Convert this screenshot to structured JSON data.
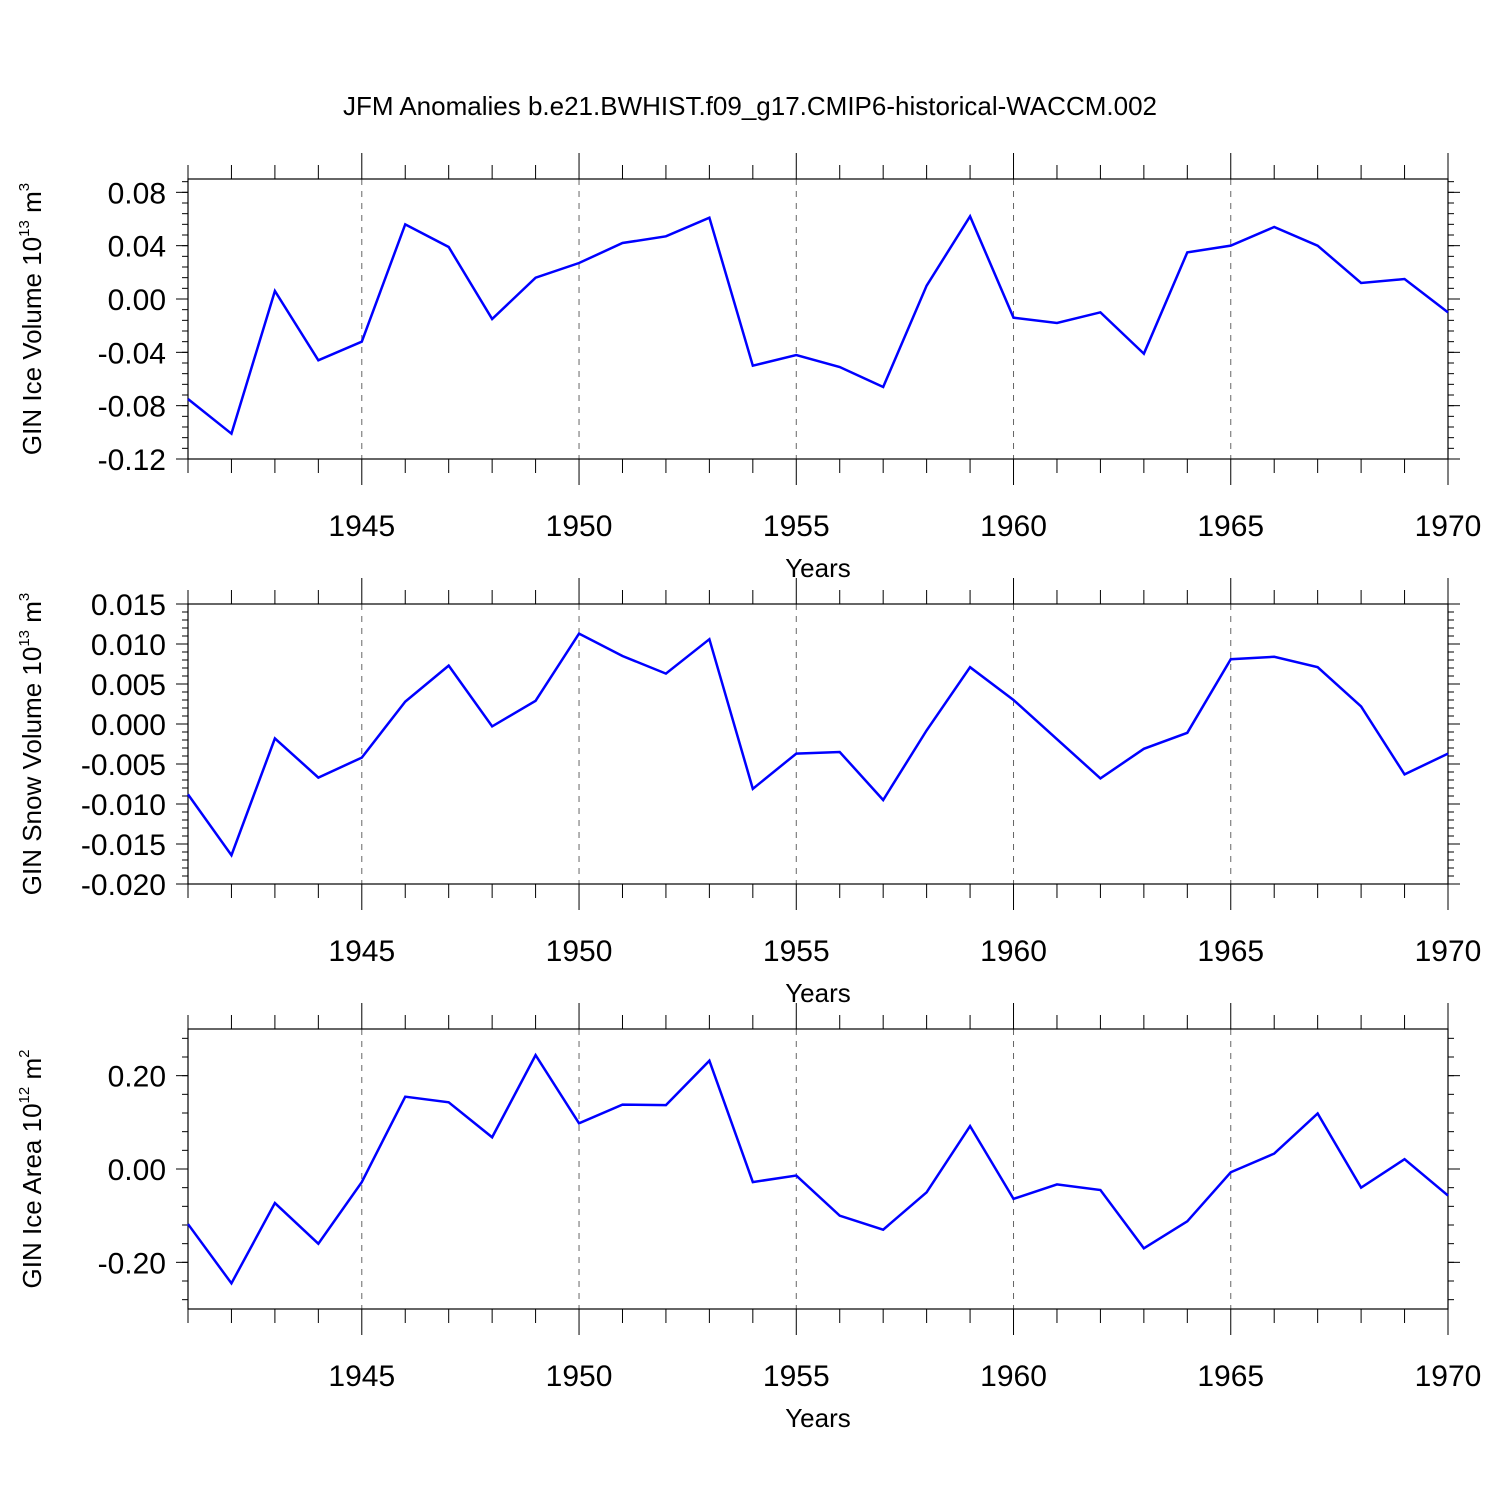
{
  "chart_data": [
    {
      "type": "line",
      "title": "JFM Anomalies b.e21.BWHIST.f09_g17.CMIP6-historical-WACCM.002",
      "xlabel": "Years",
      "ylabel_main": "GIN Ice Volume 10",
      "ylabel_exp": "13",
      "ylabel_unit": " m",
      "ylabel_unit_exp": "3",
      "xlim": [
        1941,
        1970
      ],
      "ylim": [
        -0.12,
        0.09
      ],
      "x_ticks": [
        1945,
        1950,
        1955,
        1960,
        1965,
        1970
      ],
      "x_tick_labels": [
        "1945",
        "1950",
        "1955",
        "1960",
        "1965",
        "1970"
      ],
      "y_ticks": [
        -0.12,
        -0.08,
        -0.04,
        0.0,
        0.04,
        0.08
      ],
      "y_tick_labels": [
        "-0.12",
        "-0.08",
        "-0.04",
        "0.00",
        "0.04",
        "0.08"
      ],
      "grid": "vertical dashed at labeled x ticks",
      "line_color": "#0000ff",
      "x": [
        1941,
        1942,
        1943,
        1944,
        1945,
        1946,
        1947,
        1948,
        1949,
        1950,
        1951,
        1952,
        1953,
        1954,
        1955,
        1956,
        1957,
        1958,
        1959,
        1960,
        1961,
        1962,
        1963,
        1964,
        1965,
        1966,
        1967,
        1968,
        1969,
        1970
      ],
      "values": [
        -0.075,
        -0.101,
        0.006,
        -0.046,
        -0.032,
        0.056,
        0.039,
        -0.015,
        0.016,
        0.027,
        0.042,
        0.047,
        0.061,
        -0.05,
        -0.042,
        -0.051,
        -0.066,
        0.01,
        0.062,
        -0.014,
        -0.018,
        -0.01,
        -0.041,
        0.035,
        0.04,
        0.054,
        0.04,
        0.012,
        0.015,
        -0.01
      ]
    },
    {
      "type": "line",
      "xlabel": "Years",
      "ylabel_main": "GIN Snow Volume 10",
      "ylabel_exp": "13",
      "ylabel_unit": " m",
      "ylabel_unit_exp": "3",
      "xlim": [
        1941,
        1970
      ],
      "ylim": [
        -0.02,
        0.015
      ],
      "x_ticks": [
        1945,
        1950,
        1955,
        1960,
        1965,
        1970
      ],
      "x_tick_labels": [
        "1945",
        "1950",
        "1955",
        "1960",
        "1965",
        "1970"
      ],
      "y_ticks": [
        -0.02,
        -0.015,
        -0.01,
        -0.005,
        0.0,
        0.005,
        0.01,
        0.015
      ],
      "y_tick_labels": [
        "-0.020",
        "-0.015",
        "-0.010",
        "-0.005",
        "0.000",
        "0.005",
        "0.010",
        "0.015"
      ],
      "grid": "vertical dashed at labeled x ticks",
      "line_color": "#0000ff",
      "x": [
        1941,
        1942,
        1943,
        1944,
        1945,
        1946,
        1947,
        1948,
        1949,
        1950,
        1951,
        1952,
        1953,
        1954,
        1955,
        1956,
        1957,
        1958,
        1959,
        1960,
        1961,
        1962,
        1963,
        1964,
        1965,
        1966,
        1967,
        1968,
        1969,
        1970
      ],
      "values": [
        -0.0088,
        -0.0164,
        -0.0018,
        -0.0067,
        -0.0042,
        0.0028,
        0.0073,
        -0.0003,
        0.0029,
        0.0113,
        0.0085,
        0.0063,
        0.0106,
        -0.0081,
        -0.0037,
        -0.0035,
        -0.0095,
        -0.0008,
        0.0071,
        0.003,
        -0.0019,
        -0.0068,
        -0.0031,
        -0.0011,
        0.0081,
        0.0084,
        0.0071,
        0.0022,
        -0.0063,
        -0.0037
      ]
    },
    {
      "type": "line",
      "xlabel": "Years",
      "ylabel_main": "GIN Ice Area 10",
      "ylabel_exp": "12",
      "ylabel_unit": " m",
      "ylabel_unit_exp": "2",
      "xlim": [
        1941,
        1970
      ],
      "ylim": [
        -0.3,
        0.3
      ],
      "x_ticks": [
        1945,
        1950,
        1955,
        1960,
        1965,
        1970
      ],
      "x_tick_labels": [
        "1945",
        "1950",
        "1955",
        "1960",
        "1965",
        "1970"
      ],
      "y_ticks": [
        -0.2,
        0.0,
        0.2
      ],
      "y_tick_labels": [
        "-0.20",
        "0.00",
        "0.20"
      ],
      "grid": "vertical dashed at labeled x ticks",
      "line_color": "#0000ff",
      "x": [
        1941,
        1942,
        1943,
        1944,
        1945,
        1946,
        1947,
        1948,
        1949,
        1950,
        1951,
        1952,
        1953,
        1954,
        1955,
        1956,
        1957,
        1958,
        1959,
        1960,
        1961,
        1962,
        1963,
        1964,
        1965,
        1966,
        1967,
        1968,
        1969,
        1970
      ],
      "values": [
        -0.118,
        -0.245,
        -0.073,
        -0.16,
        -0.028,
        0.155,
        0.143,
        0.068,
        0.244,
        0.098,
        0.138,
        0.137,
        0.232,
        -0.028,
        -0.014,
        -0.1,
        -0.13,
        -0.05,
        0.092,
        -0.064,
        -0.033,
        -0.045,
        -0.17,
        -0.112,
        -0.007,
        0.033,
        0.119,
        -0.04,
        0.021,
        -0.057
      ]
    }
  ]
}
